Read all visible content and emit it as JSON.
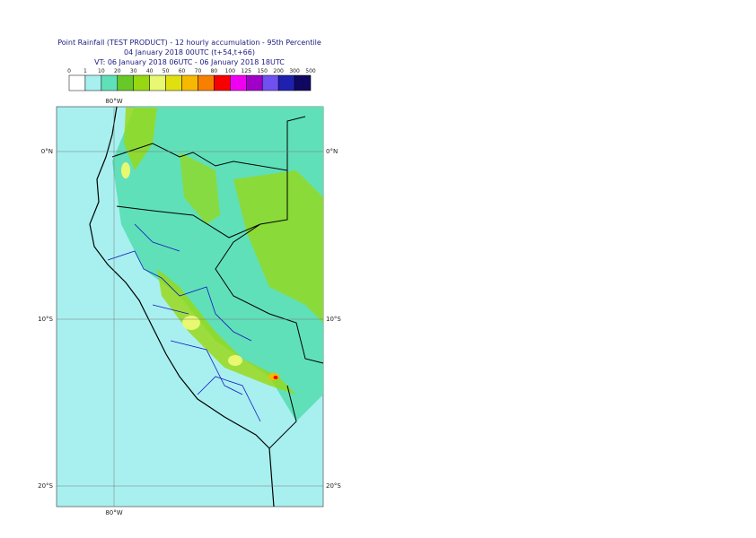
{
  "header": {
    "lines": [
      "Point Rainfall (TEST PRODUCT) - 12 hourly accumulation - 95th Percentile",
      "04 January 2018 00UTC (t+54,t+66)",
      "VT: 06 January 2018 06UTC - 06 January 2018 18UTC"
    ]
  },
  "legend": {
    "thresholds": [
      "0",
      "1",
      "10",
      "20",
      "30",
      "40",
      "50",
      "60",
      "70",
      "80",
      "100",
      "125",
      "150",
      "200",
      "300",
      "500"
    ],
    "colors": [
      "#ffffff",
      "#a8f0f0",
      "#60e0b8",
      "#68c828",
      "#98d810",
      "#e8f870",
      "#e0e010",
      "#f8b800",
      "#f88000",
      "#f80000",
      "#f000f0",
      "#a000c8",
      "#7050f0",
      "#2020b0",
      "#100860"
    ]
  },
  "map": {
    "lon_top": "80°W",
    "lon_bottom": "80°W",
    "lat_left": [
      "0°N",
      "10°S",
      "20°S"
    ],
    "lat_right": [
      "0°N",
      "10°S",
      "20°S"
    ]
  }
}
